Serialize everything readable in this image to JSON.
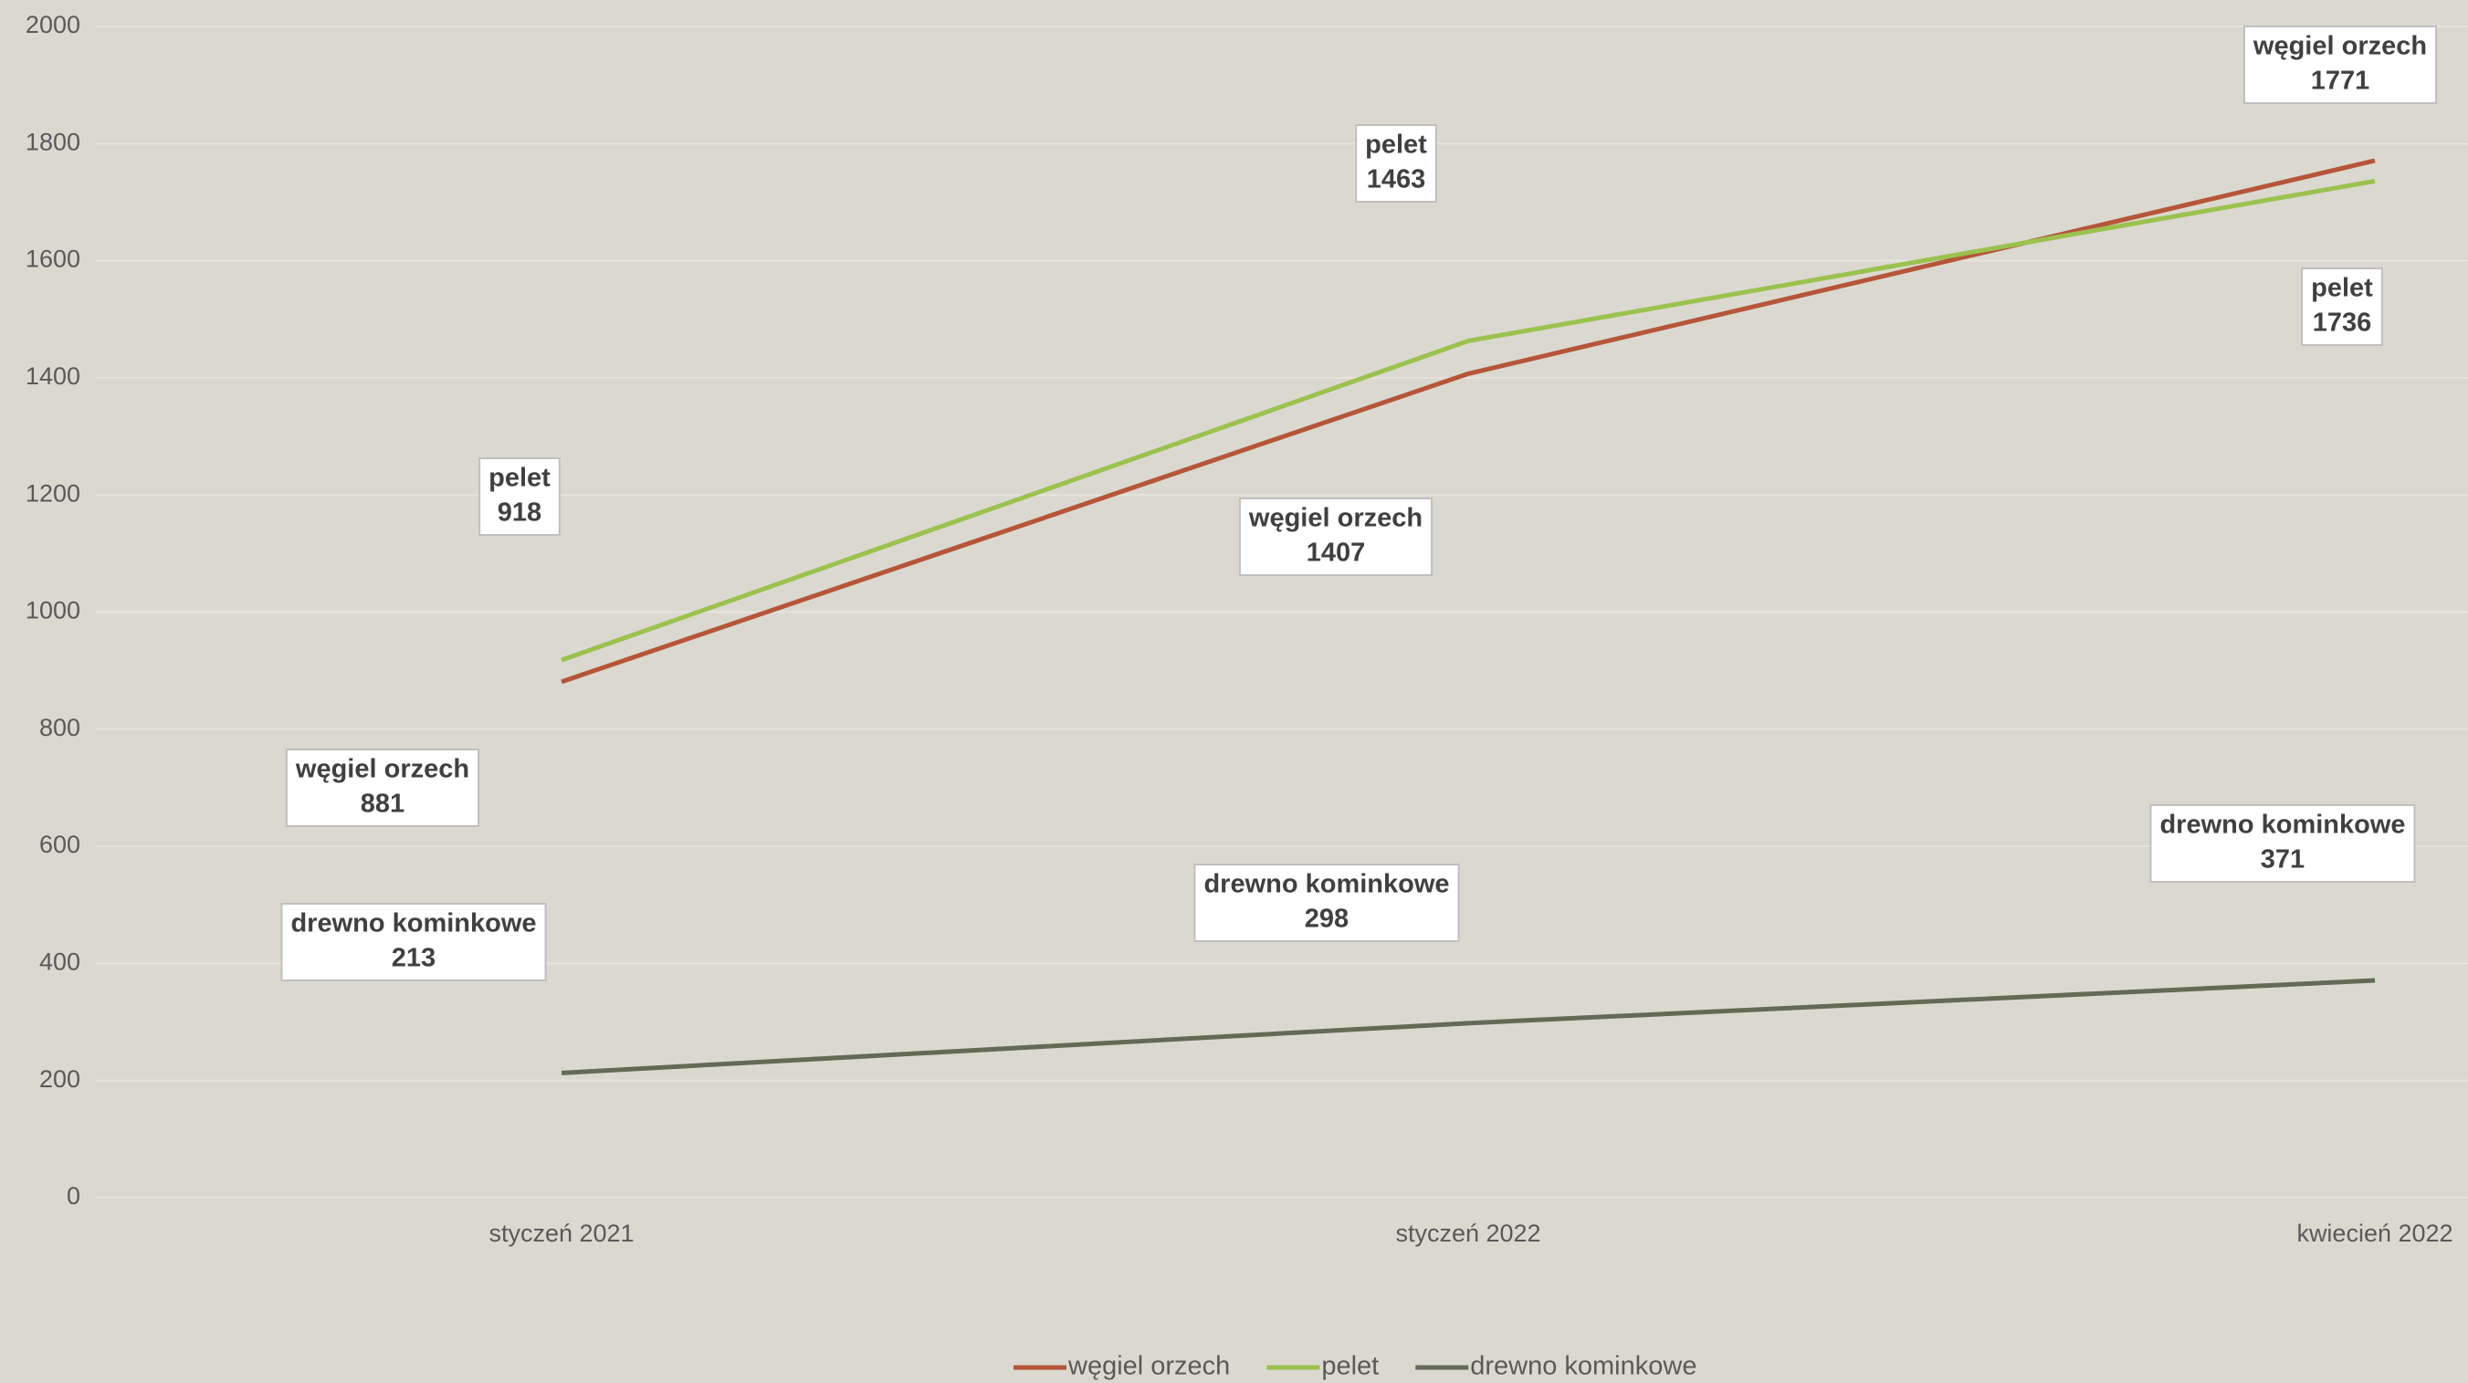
{
  "chart_data": {
    "type": "line",
    "categories": [
      "styczeń 2021",
      "styczeń 2022",
      "kwiecień 2022"
    ],
    "series": [
      {
        "name": "węgiel orzech",
        "color": "#b5553a",
        "values": [
          881,
          1407,
          1771
        ]
      },
      {
        "name": "pelet",
        "color": "#9bc14f",
        "values": [
          918,
          1463,
          1736
        ]
      },
      {
        "name": "drewno kominkowe",
        "color": "#636b55",
        "values": [
          213,
          298,
          371
        ]
      }
    ],
    "ylim": [
      0,
      2000
    ],
    "yticks": [
      0,
      200,
      400,
      600,
      800,
      1000,
      1200,
      1400,
      1600,
      1800,
      2000
    ],
    "grid": true,
    "legend": "bottom"
  }
}
